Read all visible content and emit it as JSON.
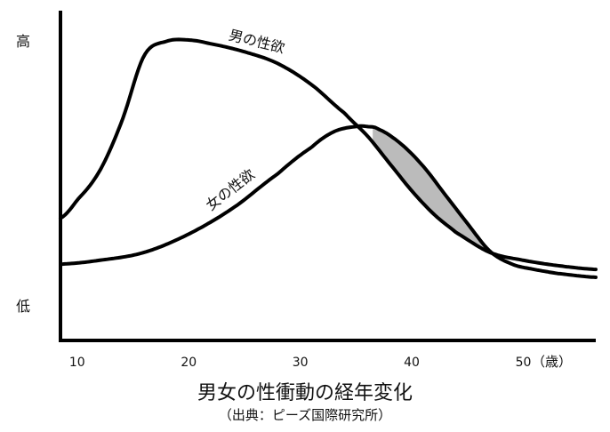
{
  "chart_data": {
    "type": "line",
    "title": "男女の性衝動の経年変化",
    "subtitle": "（出典：ピーズ国際研究所）",
    "xlabel": "（歳）",
    "y_tick_labels": {
      "high": "高",
      "low": "低"
    },
    "x_ticks": [
      10,
      20,
      30,
      40,
      50
    ],
    "xlim": [
      8.5,
      56.5
    ],
    "ylim": [
      0,
      10
    ],
    "grid": false,
    "series": [
      {
        "name": "男の性欲",
        "x": [
          8.5,
          10,
          12,
          14,
          16,
          18,
          20,
          22,
          25,
          28,
          31,
          34,
          36,
          38,
          40,
          42,
          44,
          47,
          50,
          53,
          56.5
        ],
        "y": [
          3.2,
          3.9,
          5.0,
          6.9,
          9.4,
          9.95,
          10.0,
          9.85,
          9.55,
          9.1,
          8.3,
          7.2,
          6.35,
          5.3,
          4.25,
          3.35,
          2.65,
          1.9,
          1.6,
          1.4,
          1.25
        ]
      },
      {
        "name": "女の性欲",
        "x": [
          8.5,
          12,
          16,
          20,
          24,
          28,
          31,
          33,
          35,
          36,
          37,
          39,
          41,
          43,
          45,
          47,
          49,
          51,
          53,
          56.5
        ],
        "y": [
          1.45,
          1.6,
          1.9,
          2.6,
          3.6,
          4.9,
          5.9,
          6.5,
          6.7,
          6.7,
          6.6,
          6.05,
          5.2,
          4.1,
          3.0,
          1.95,
          1.45,
          1.25,
          1.1,
          0.95
        ]
      }
    ],
    "shaded_region": {
      "between": [
        "女の性欲",
        "男の性欲"
      ],
      "x_range": [
        36.5,
        46.8
      ],
      "color": "#bbbbbb"
    }
  }
}
